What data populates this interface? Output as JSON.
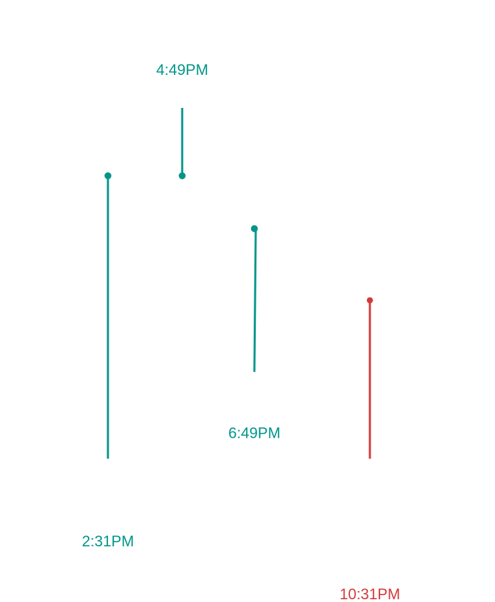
{
  "colors": {
    "up": "#00968a",
    "down": "#d33a3a"
  },
  "chart_data": {
    "type": "line",
    "title": "",
    "xlabel": "",
    "ylabel": "",
    "ylim": [
      0,
      100
    ],
    "series": [
      {
        "label": "2:31PM",
        "direction": "up",
        "start": 5,
        "end": 80,
        "endpoint_marker": "end"
      },
      {
        "label": "4:49PM",
        "direction": "up",
        "start": 80,
        "end": 98,
        "endpoint_marker": "start"
      },
      {
        "label": "6:49PM",
        "direction": "up",
        "start": 28,
        "end": 66,
        "endpoint_marker": "end"
      },
      {
        "label": "10:31PM",
        "direction": "down",
        "start": 47,
        "end": 5,
        "endpoint_marker": "start"
      }
    ]
  }
}
